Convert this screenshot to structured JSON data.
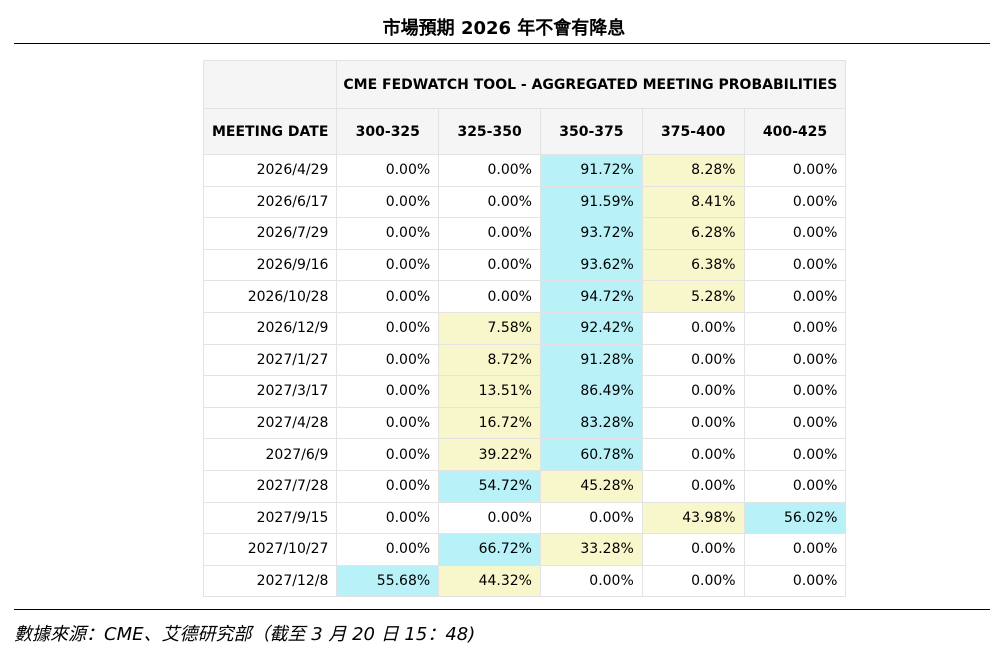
{
  "title": "市場預期 2026 年不會有降息",
  "footer": "數據來源：CME、艾德研究部（截至 3 月 20 日 15：48)",
  "colors": {
    "peak": "#b8f1f8",
    "second": "#f8f7cc",
    "header_bg": "#f5f5f5"
  },
  "chart_data": {
    "type": "table",
    "group_title": "CME FEDWATCH TOOL - AGGREGATED MEETING PROBABILITIES",
    "row_header": "MEETING DATE",
    "columns": [
      "300-325",
      "325-350",
      "350-375",
      "375-400",
      "400-425"
    ],
    "rows": [
      {
        "date": "2026/4/29",
        "values": [
          "0.00%",
          "0.00%",
          "91.72%",
          "8.28%",
          "0.00%"
        ]
      },
      {
        "date": "2026/6/17",
        "values": [
          "0.00%",
          "0.00%",
          "91.59%",
          "8.41%",
          "0.00%"
        ]
      },
      {
        "date": "2026/7/29",
        "values": [
          "0.00%",
          "0.00%",
          "93.72%",
          "6.28%",
          "0.00%"
        ]
      },
      {
        "date": "2026/9/16",
        "values": [
          "0.00%",
          "0.00%",
          "93.62%",
          "6.38%",
          "0.00%"
        ]
      },
      {
        "date": "2026/10/28",
        "values": [
          "0.00%",
          "0.00%",
          "94.72%",
          "5.28%",
          "0.00%"
        ]
      },
      {
        "date": "2026/12/9",
        "values": [
          "0.00%",
          "7.58%",
          "92.42%",
          "0.00%",
          "0.00%"
        ]
      },
      {
        "date": "2027/1/27",
        "values": [
          "0.00%",
          "8.72%",
          "91.28%",
          "0.00%",
          "0.00%"
        ]
      },
      {
        "date": "2027/3/17",
        "values": [
          "0.00%",
          "13.51%",
          "86.49%",
          "0.00%",
          "0.00%"
        ]
      },
      {
        "date": "2027/4/28",
        "values": [
          "0.00%",
          "16.72%",
          "83.28%",
          "0.00%",
          "0.00%"
        ]
      },
      {
        "date": "2027/6/9",
        "values": [
          "0.00%",
          "39.22%",
          "60.78%",
          "0.00%",
          "0.00%"
        ]
      },
      {
        "date": "2027/7/28",
        "values": [
          "0.00%",
          "54.72%",
          "45.28%",
          "0.00%",
          "0.00%"
        ]
      },
      {
        "date": "2027/9/15",
        "values": [
          "0.00%",
          "0.00%",
          "0.00%",
          "43.98%",
          "56.02%"
        ]
      },
      {
        "date": "2027/10/27",
        "values": [
          "0.00%",
          "66.72%",
          "33.28%",
          "0.00%",
          "0.00%"
        ]
      },
      {
        "date": "2027/12/8",
        "values": [
          "55.68%",
          "44.32%",
          "0.00%",
          "0.00%",
          "0.00%"
        ]
      }
    ]
  }
}
